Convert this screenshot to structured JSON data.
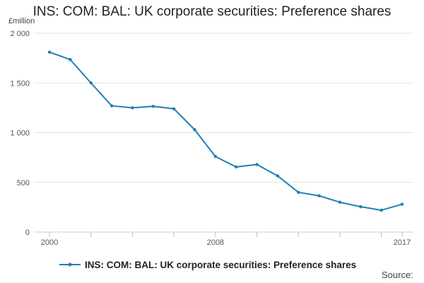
{
  "chart_data": {
    "type": "line",
    "title": "INS: COM: BAL: UK corporate securities: Preference shares",
    "ylabel": "£million",
    "xlabel": "",
    "ylim": [
      0,
      2000
    ],
    "yticks": [
      0,
      500,
      1000,
      1500,
      2000
    ],
    "ytick_labels": [
      "0",
      "500",
      "1 000",
      "1 500",
      "2 000"
    ],
    "xlim": [
      2000,
      2017
    ],
    "xtick_labels": [
      {
        "x": 2000,
        "label": "2000"
      },
      {
        "x": 2008,
        "label": "2008"
      },
      {
        "x": 2017,
        "label": "2017"
      }
    ],
    "x": [
      2000,
      2001,
      2002,
      2003,
      2004,
      2005,
      2006,
      2007,
      2008,
      2009,
      2010,
      2011,
      2012,
      2013,
      2014,
      2015,
      2016,
      2017
    ],
    "series": [
      {
        "name": "INS: COM: BAL: UK corporate securities: Preference shares",
        "color": "#1f7fb6",
        "values": [
          1810,
          1735,
          1500,
          1270,
          1250,
          1265,
          1240,
          1030,
          760,
          655,
          680,
          565,
          400,
          365,
          300,
          255,
          220,
          280
        ]
      }
    ],
    "grid": true,
    "legend_position": "bottom",
    "source": "Source:"
  }
}
